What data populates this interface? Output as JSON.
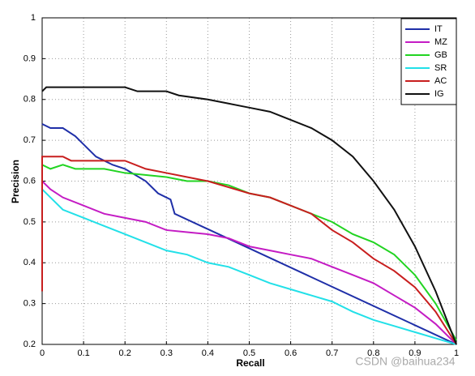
{
  "chart_data": {
    "type": "line",
    "xlabel": "Recall",
    "ylabel": "Precision",
    "xlim": [
      0,
      1
    ],
    "ylim": [
      0.2,
      1
    ],
    "xticks": [
      0,
      0.1,
      0.2,
      0.3,
      0.4,
      0.5,
      0.6,
      0.7,
      0.8,
      0.9,
      1
    ],
    "yticks": [
      0.2,
      0.3,
      0.4,
      0.5,
      0.6,
      0.7,
      0.8,
      0.9,
      1
    ],
    "grid": true,
    "legend": "upper right",
    "watermark": "CSDN @baihua234",
    "series": [
      {
        "name": "IT",
        "color": "#1f2fa8",
        "x": [
          0,
          0.02,
          0.05,
          0.08,
          0.1,
          0.13,
          0.17,
          0.2,
          0.25,
          0.28,
          0.31,
          0.32,
          1
        ],
        "values": [
          0.74,
          0.73,
          0.73,
          0.71,
          0.69,
          0.66,
          0.64,
          0.63,
          0.6,
          0.57,
          0.555,
          0.52,
          0.2
        ]
      },
      {
        "name": "MZ",
        "color": "#c41cc4",
        "x": [
          0,
          0.02,
          0.05,
          0.1,
          0.15,
          0.2,
          0.25,
          0.3,
          0.35,
          0.4,
          0.45,
          0.5,
          0.55,
          0.6,
          0.65,
          0.7,
          0.75,
          0.8,
          0.85,
          0.9,
          0.95,
          1
        ],
        "values": [
          0.6,
          0.58,
          0.56,
          0.54,
          0.52,
          0.51,
          0.5,
          0.48,
          0.475,
          0.47,
          0.46,
          0.44,
          0.43,
          0.42,
          0.41,
          0.39,
          0.37,
          0.35,
          0.32,
          0.29,
          0.25,
          0.2
        ]
      },
      {
        "name": "GB",
        "color": "#22d422",
        "x": [
          0,
          0.02,
          0.05,
          0.08,
          0.15,
          0.2,
          0.3,
          0.35,
          0.4,
          0.45,
          0.5,
          0.55,
          0.6,
          0.65,
          0.7,
          0.75,
          0.8,
          0.85,
          0.9,
          0.95,
          1
        ],
        "values": [
          0.64,
          0.63,
          0.64,
          0.63,
          0.63,
          0.62,
          0.61,
          0.6,
          0.6,
          0.59,
          0.57,
          0.56,
          0.54,
          0.52,
          0.5,
          0.47,
          0.45,
          0.42,
          0.37,
          0.3,
          0.21
        ]
      },
      {
        "name": "SR",
        "color": "#22e0e8",
        "x": [
          0,
          0.02,
          0.05,
          0.1,
          0.15,
          0.2,
          0.25,
          0.3,
          0.35,
          0.4,
          0.45,
          0.5,
          0.55,
          0.6,
          0.65,
          0.7,
          0.75,
          0.8,
          0.85,
          0.9,
          0.95,
          1
        ],
        "values": [
          0.58,
          0.56,
          0.53,
          0.51,
          0.49,
          0.47,
          0.45,
          0.43,
          0.42,
          0.4,
          0.39,
          0.37,
          0.35,
          0.335,
          0.32,
          0.305,
          0.28,
          0.26,
          0.245,
          0.23,
          0.215,
          0.2
        ]
      },
      {
        "name": "AC",
        "color": "#c81e1e",
        "x": [
          0,
          0,
          0.05,
          0.07,
          0.2,
          0.25,
          0.3,
          0.35,
          0.4,
          0.45,
          0.5,
          0.55,
          0.6,
          0.65,
          0.7,
          0.75,
          0.8,
          0.85,
          0.9,
          0.95,
          1
        ],
        "values": [
          0.33,
          0.66,
          0.66,
          0.65,
          0.65,
          0.63,
          0.62,
          0.61,
          0.6,
          0.585,
          0.57,
          0.56,
          0.54,
          0.52,
          0.48,
          0.45,
          0.41,
          0.38,
          0.34,
          0.28,
          0.2
        ]
      },
      {
        "name": "IG",
        "color": "#111111",
        "x": [
          0,
          0.01,
          0.1,
          0.2,
          0.23,
          0.3,
          0.33,
          0.4,
          0.45,
          0.5,
          0.55,
          0.6,
          0.65,
          0.7,
          0.75,
          0.8,
          0.85,
          0.9,
          0.95,
          1
        ],
        "values": [
          0.82,
          0.83,
          0.83,
          0.83,
          0.82,
          0.82,
          0.81,
          0.8,
          0.79,
          0.78,
          0.77,
          0.75,
          0.73,
          0.7,
          0.66,
          0.6,
          0.53,
          0.44,
          0.33,
          0.2
        ]
      }
    ]
  }
}
